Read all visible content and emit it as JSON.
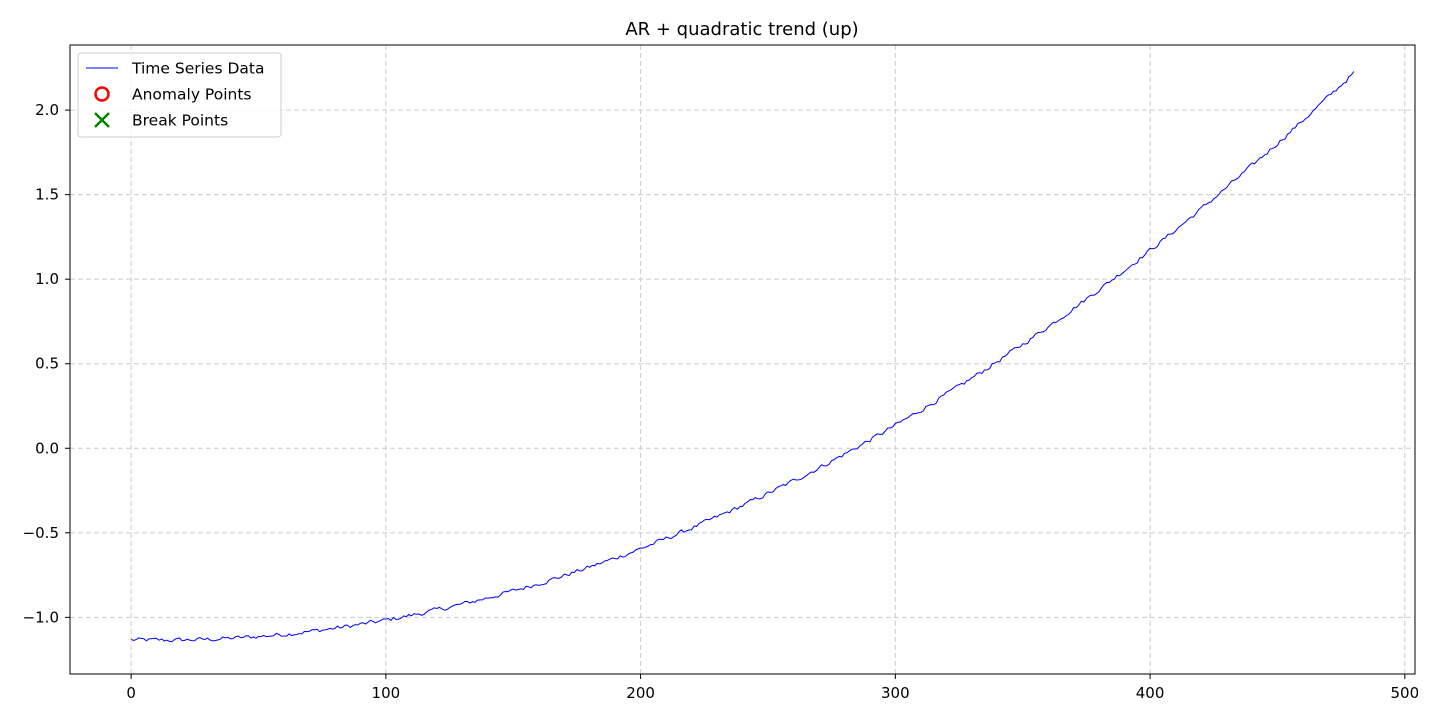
{
  "chart_data": {
    "type": "line",
    "title": "AR + quadratic trend (up)",
    "xlabel": "",
    "ylabel": "",
    "xlim": [
      -24,
      504
    ],
    "ylim": [
      -1.335,
      2.385
    ],
    "x_ticks": [
      0,
      100,
      200,
      300,
      400,
      500
    ],
    "x_tick_labels": [
      "0",
      "100",
      "200",
      "300",
      "400",
      "500"
    ],
    "y_ticks": [
      -1.0,
      -0.5,
      0.0,
      0.5,
      1.0,
      1.5,
      2.0
    ],
    "y_tick_labels": [
      "−1.0",
      "−0.5",
      "0.0",
      "0.5",
      "1.0",
      "1.5",
      "2.0"
    ],
    "grid": true,
    "legend_position": "top-left",
    "legend": [
      "Time Series Data",
      "Anomaly Points",
      "Break Points"
    ],
    "series": [
      {
        "name": "Time Series Data",
        "color": "#0000ff",
        "model": {
          "kind": "quadratic_trend_with_ar_noise",
          "n_points": 481,
          "start": -1.13,
          "end": 2.22,
          "vertex_x": 12,
          "vertex_y": -1.135,
          "noise_amplitude": 0.012
        },
        "anchor_points": [
          [
            0,
            -1.12
          ],
          [
            10,
            -1.14
          ],
          [
            20,
            -1.13
          ],
          [
            30,
            -1.12
          ],
          [
            50,
            -1.1
          ],
          [
            60,
            -1.08
          ],
          [
            80,
            -1.03
          ],
          [
            100,
            -0.97
          ],
          [
            120,
            -0.91
          ],
          [
            150,
            -0.8
          ],
          [
            175,
            -0.68
          ],
          [
            200,
            -0.52
          ],
          [
            225,
            -0.37
          ],
          [
            250,
            -0.2
          ],
          [
            275,
            -0.01
          ],
          [
            300,
            0.2
          ],
          [
            325,
            0.42
          ],
          [
            350,
            0.65
          ],
          [
            375,
            0.92
          ],
          [
            400,
            1.21
          ],
          [
            425,
            1.52
          ],
          [
            450,
            1.84
          ],
          [
            480,
            2.22
          ]
        ]
      },
      {
        "name": "Anomaly Points",
        "color": "#ff0000",
        "marker": "circle-open",
        "points": []
      },
      {
        "name": "Break Points",
        "color": "#008000",
        "marker": "x",
        "points": []
      }
    ]
  }
}
